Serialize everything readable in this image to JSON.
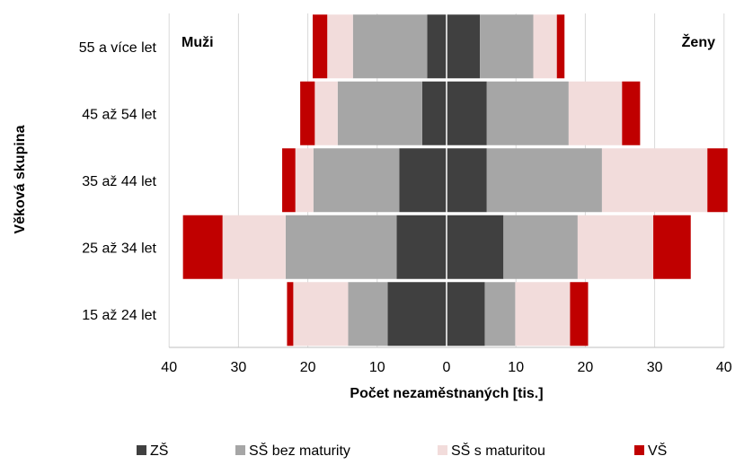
{
  "chart_data": {
    "type": "bar",
    "orientation": "horizontal-population-pyramid",
    "categories": [
      "15 až 24 let",
      "25 až 34 let",
      "35 až 44 let",
      "45 až 54 let",
      "55 a více let"
    ],
    "left_group": "Muži",
    "right_group": "Ženy",
    "series": [
      {
        "name": "ZŠ",
        "color": "#404040",
        "men": [
          8.5,
          7.2,
          6.8,
          3.5,
          2.8
        ],
        "women": [
          5.5,
          8.2,
          5.8,
          5.8,
          4.8
        ]
      },
      {
        "name": "SŠ bez maturity",
        "color": "#a6a6a6",
        "men": [
          5.7,
          16.0,
          12.4,
          12.2,
          10.7
        ],
        "women": [
          4.4,
          10.7,
          16.6,
          11.8,
          7.7
        ]
      },
      {
        "name": "SŠ  s maturitou",
        "color": "#f2dcdb",
        "men": [
          7.9,
          9.1,
          2.6,
          3.3,
          3.7
        ],
        "women": [
          7.9,
          10.9,
          15.2,
          7.7,
          3.4
        ]
      },
      {
        "name": "VŠ",
        "color": "#c00000",
        "men": [
          0.9,
          5.7,
          1.9,
          2.1,
          2.1
        ],
        "women": [
          2.6,
          5.4,
          2.9,
          2.6,
          1.1
        ]
      }
    ],
    "xlabel": "Počet nezaměstnaných [tis.]",
    "ylabel": "Věková skupina",
    "xlim": [
      -40,
      40
    ],
    "xticks": [
      "40",
      "30",
      "20",
      "10",
      "0",
      "10",
      "20",
      "30",
      "40"
    ],
    "grid": "vertical",
    "legend_position": "bottom"
  }
}
